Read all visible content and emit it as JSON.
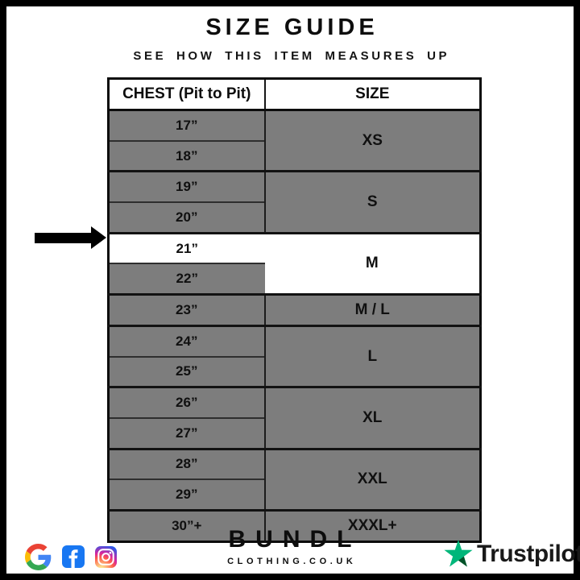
{
  "chart_data": {
    "type": "table",
    "title": "SIZE GUIDE",
    "subtitle": "SEE HOW THIS ITEM MEASURES UP",
    "columns": [
      "CHEST (Pit to Pit)",
      "SIZE"
    ],
    "groups": [
      {
        "size": "XS",
        "chest": [
          "17”",
          "18”"
        ]
      },
      {
        "size": "S",
        "chest": [
          "19”",
          "20”"
        ]
      },
      {
        "size": "M",
        "chest": [
          "21”",
          "22”"
        ],
        "highlight_chest": "21”"
      },
      {
        "size": "M / L",
        "chest": [
          "23”"
        ]
      },
      {
        "size": "L",
        "chest": [
          "24”",
          "25”"
        ]
      },
      {
        "size": "XL",
        "chest": [
          "26”",
          "27”"
        ]
      },
      {
        "size": "XXL",
        "chest": [
          "28”",
          "29”"
        ]
      },
      {
        "size": "XXXL+",
        "chest": [
          "30”+"
        ]
      }
    ],
    "highlight_arrow_points_to": "21”"
  },
  "footer": {
    "brand_name": "BUNDL",
    "brand_domain": "CLOTHING.CO.UK",
    "trustpilot_label": "Trustpilot",
    "social_icons": [
      "google-icon",
      "facebook-icon",
      "instagram-icon"
    ]
  },
  "colors": {
    "row_gray": "#7d7d7d",
    "highlight_white": "#ffffff",
    "border_black": "#0c0c0c",
    "facebook_blue": "#1877F2",
    "trustpilot_green": "#00B67A",
    "trustpilot_shadow": "#005128",
    "google_red": "#EA4335",
    "google_blue": "#4285F4",
    "google_yellow": "#FBBC05",
    "google_green": "#34A853"
  }
}
